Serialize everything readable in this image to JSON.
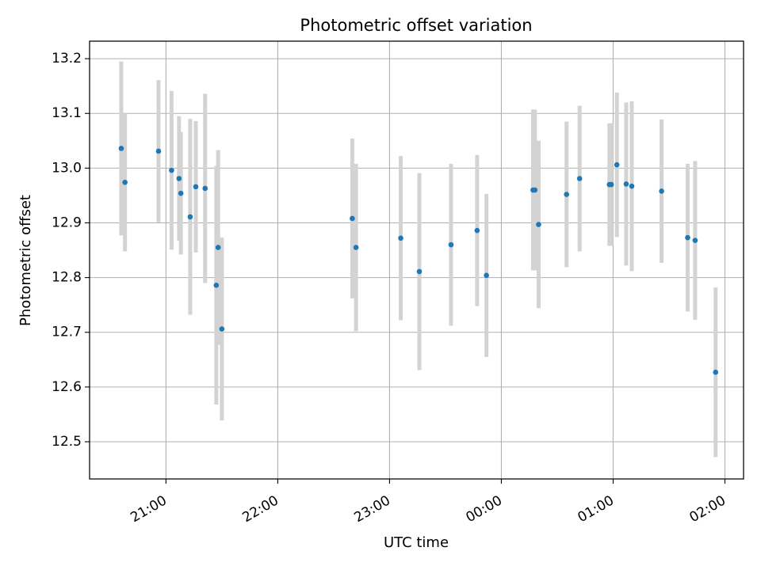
{
  "chart_data": {
    "type": "scatter",
    "title": "Photometric offset variation",
    "xlabel": "UTC time",
    "ylabel": "Photometric offset",
    "x_tick_labels": [
      "21:00",
      "22:00",
      "23:00",
      "00:00",
      "01:00",
      "02:00"
    ],
    "y_ticks": [
      12.5,
      12.6,
      12.7,
      12.8,
      12.9,
      13.0,
      13.1,
      13.2
    ],
    "xlim": [
      "2000-01-01T20:19",
      "2000-01-02T02:10"
    ],
    "ylim": [
      12.432,
      13.232
    ],
    "grid": true,
    "colors": {
      "points": "#1f77b4",
      "errorbars": "#d3d3d3",
      "grid": "#b0b0b0"
    },
    "series": [
      {
        "points": [
          {
            "x": "2000-01-01T20:36",
            "y": 13.036,
            "err": 0.159
          },
          {
            "x": "2000-01-01T20:38",
            "y": 12.974,
            "err": 0.126
          },
          {
            "x": "2000-01-01T20:56",
            "y": 13.031,
            "err": 0.13
          },
          {
            "x": "2000-01-01T21:03",
            "y": 12.996,
            "err": 0.145
          },
          {
            "x": "2000-01-01T21:07",
            "y": 12.981,
            "err": 0.114
          },
          {
            "x": "2000-01-01T21:08",
            "y": 12.954,
            "err": 0.112
          },
          {
            "x": "2000-01-01T21:13",
            "y": 12.911,
            "err": 0.179
          },
          {
            "x": "2000-01-01T21:16",
            "y": 12.966,
            "err": 0.12
          },
          {
            "x": "2000-01-01T21:21",
            "y": 12.963,
            "err": 0.173
          },
          {
            "x": "2000-01-01T21:27",
            "y": 12.786,
            "err": 0.218
          },
          {
            "x": "2000-01-01T21:28",
            "y": 12.855,
            "err": 0.178
          },
          {
            "x": "2000-01-01T21:30",
            "y": 12.706,
            "err": 0.167
          },
          {
            "x": "2000-01-01T22:40",
            "y": 12.908,
            "err": 0.146
          },
          {
            "x": "2000-01-01T22:42",
            "y": 12.855,
            "err": 0.153
          },
          {
            "x": "2000-01-01T23:06",
            "y": 12.872,
            "err": 0.15
          },
          {
            "x": "2000-01-01T23:16",
            "y": 12.811,
            "err": 0.18
          },
          {
            "x": "2000-01-01T23:33",
            "y": 12.86,
            "err": 0.148
          },
          {
            "x": "2000-01-01T23:47",
            "y": 12.886,
            "err": 0.138
          },
          {
            "x": "2000-01-01T23:52",
            "y": 12.804,
            "err": 0.149
          },
          {
            "x": "2000-01-02T00:17",
            "y": 12.96,
            "err": 0.147
          },
          {
            "x": "2000-01-02T00:18",
            "y": 12.96,
            "err": 0.147
          },
          {
            "x": "2000-01-02T00:20",
            "y": 12.897,
            "err": 0.153
          },
          {
            "x": "2000-01-02T00:35",
            "y": 12.952,
            "err": 0.133
          },
          {
            "x": "2000-01-02T00:42",
            "y": 12.981,
            "err": 0.133
          },
          {
            "x": "2000-01-02T00:58",
            "y": 12.97,
            "err": 0.112
          },
          {
            "x": "2000-01-02T00:59",
            "y": 12.97,
            "err": 0.112
          },
          {
            "x": "2000-01-02T01:02",
            "y": 13.006,
            "err": 0.132
          },
          {
            "x": "2000-01-02T01:07",
            "y": 12.971,
            "err": 0.149
          },
          {
            "x": "2000-01-02T01:10",
            "y": 12.967,
            "err": 0.155
          },
          {
            "x": "2000-01-02T01:26",
            "y": 12.958,
            "err": 0.131
          },
          {
            "x": "2000-01-02T01:40",
            "y": 12.873,
            "err": 0.135
          },
          {
            "x": "2000-01-02T01:44",
            "y": 12.868,
            "err": 0.145
          },
          {
            "x": "2000-01-02T01:55",
            "y": 12.627,
            "err": 0.155
          }
        ]
      }
    ]
  }
}
